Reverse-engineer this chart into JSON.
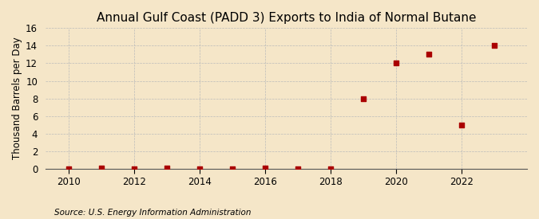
{
  "title": "Annual Gulf Coast (PADD 3) Exports to India of Normal Butane",
  "ylabel": "Thousand Barrels per Day",
  "source_text": "Source: U.S. Energy Information Administration",
  "background_color": "#f5e6c8",
  "plot_bg_color": "#f5e6c8",
  "years": [
    2010,
    2011,
    2012,
    2013,
    2014,
    2015,
    2016,
    2017,
    2018,
    2019,
    2020,
    2021,
    2022,
    2023
  ],
  "values": [
    0,
    0.1,
    0,
    0.1,
    0,
    0,
    0.1,
    0,
    0,
    8,
    12,
    13,
    5,
    14
  ],
  "marker_color": "#aa0000",
  "marker_size": 4,
  "ylim": [
    0,
    16
  ],
  "yticks": [
    0,
    2,
    4,
    6,
    8,
    10,
    12,
    14,
    16
  ],
  "xlim": [
    2009.3,
    2024.0
  ],
  "xticks": [
    2010,
    2012,
    2014,
    2016,
    2018,
    2020,
    2022
  ],
  "grid_color": "#bbbbbb",
  "title_fontsize": 11,
  "title_fontweight": "normal",
  "axis_label_fontsize": 8.5,
  "tick_fontsize": 8.5,
  "source_fontsize": 7.5
}
